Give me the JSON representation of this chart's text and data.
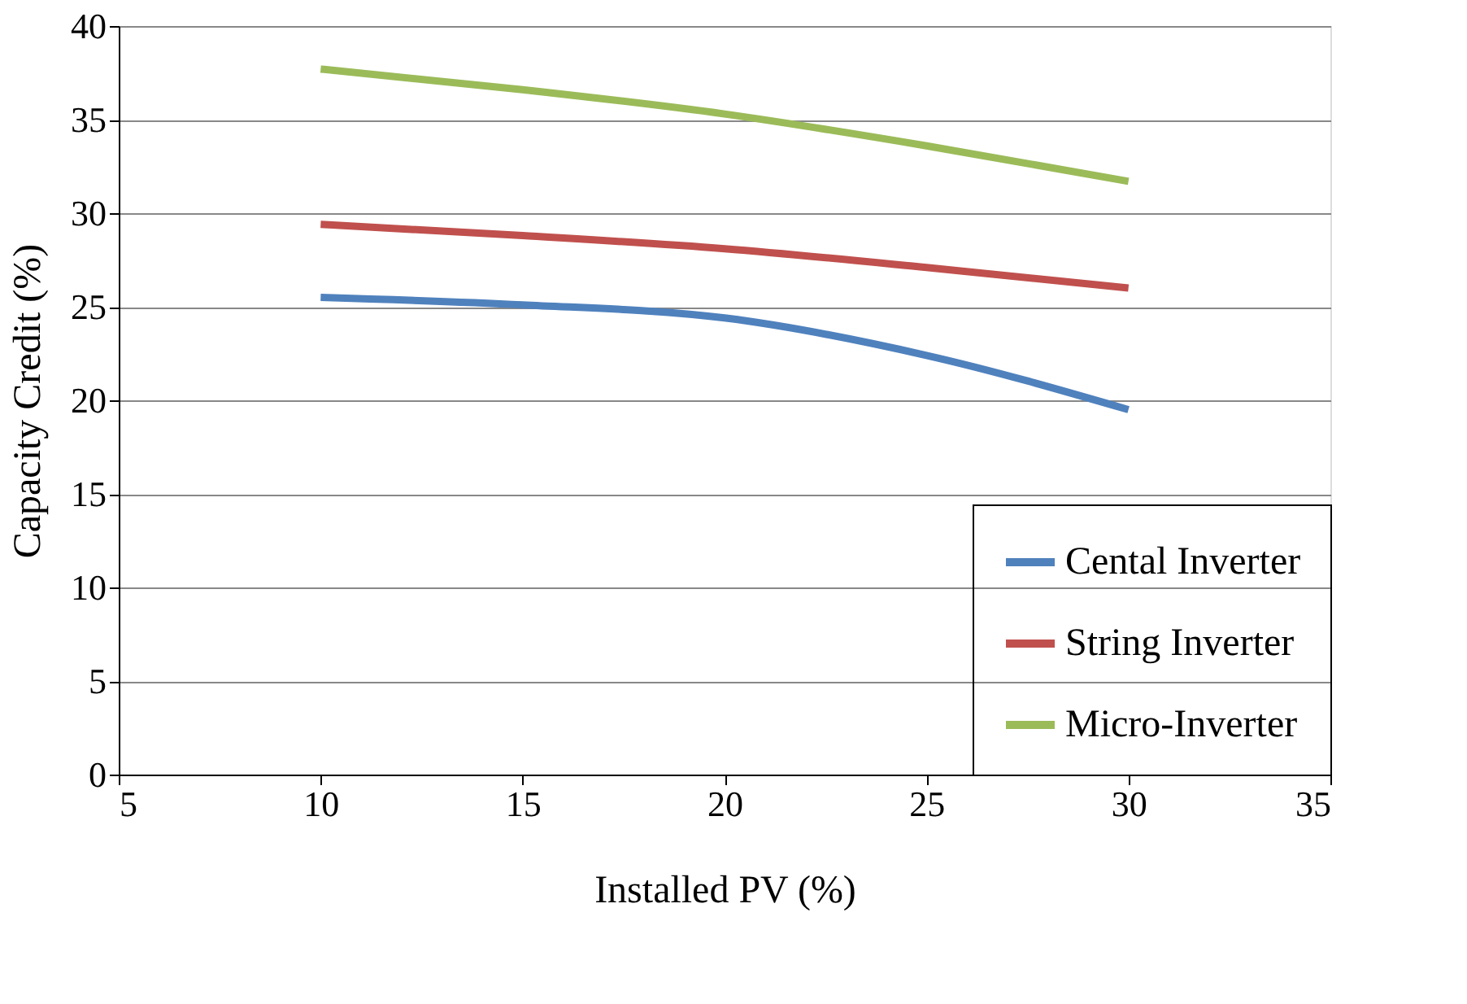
{
  "chart_data": {
    "type": "line",
    "xlabel": "Installed PV (%)",
    "ylabel": "Capacity Credit (%)",
    "x": [
      10,
      15,
      20,
      25,
      30
    ],
    "series": [
      {
        "name": "Cental Inverter",
        "color": "#4f81bd",
        "values": [
          25.5,
          25.1,
          24.4,
          22.4,
          19.5
        ]
      },
      {
        "name": "String Inverter",
        "color": "#c0504d",
        "values": [
          29.4,
          28.8,
          28.1,
          27.1,
          26.0
        ]
      },
      {
        "name": "Micro-Inverter",
        "color": "#9bbb59",
        "values": [
          37.7,
          36.6,
          35.3,
          33.6,
          31.7
        ]
      }
    ],
    "xlim": [
      5,
      35
    ],
    "xticks": [
      5,
      10,
      15,
      20,
      25,
      30,
      35
    ],
    "ylim": [
      0,
      40
    ],
    "yticks": [
      0,
      5,
      10,
      15,
      20,
      25,
      30,
      35,
      40
    ],
    "grid": "y",
    "legend": "bottom right",
    "marker": "none",
    "line_style": "solid"
  }
}
